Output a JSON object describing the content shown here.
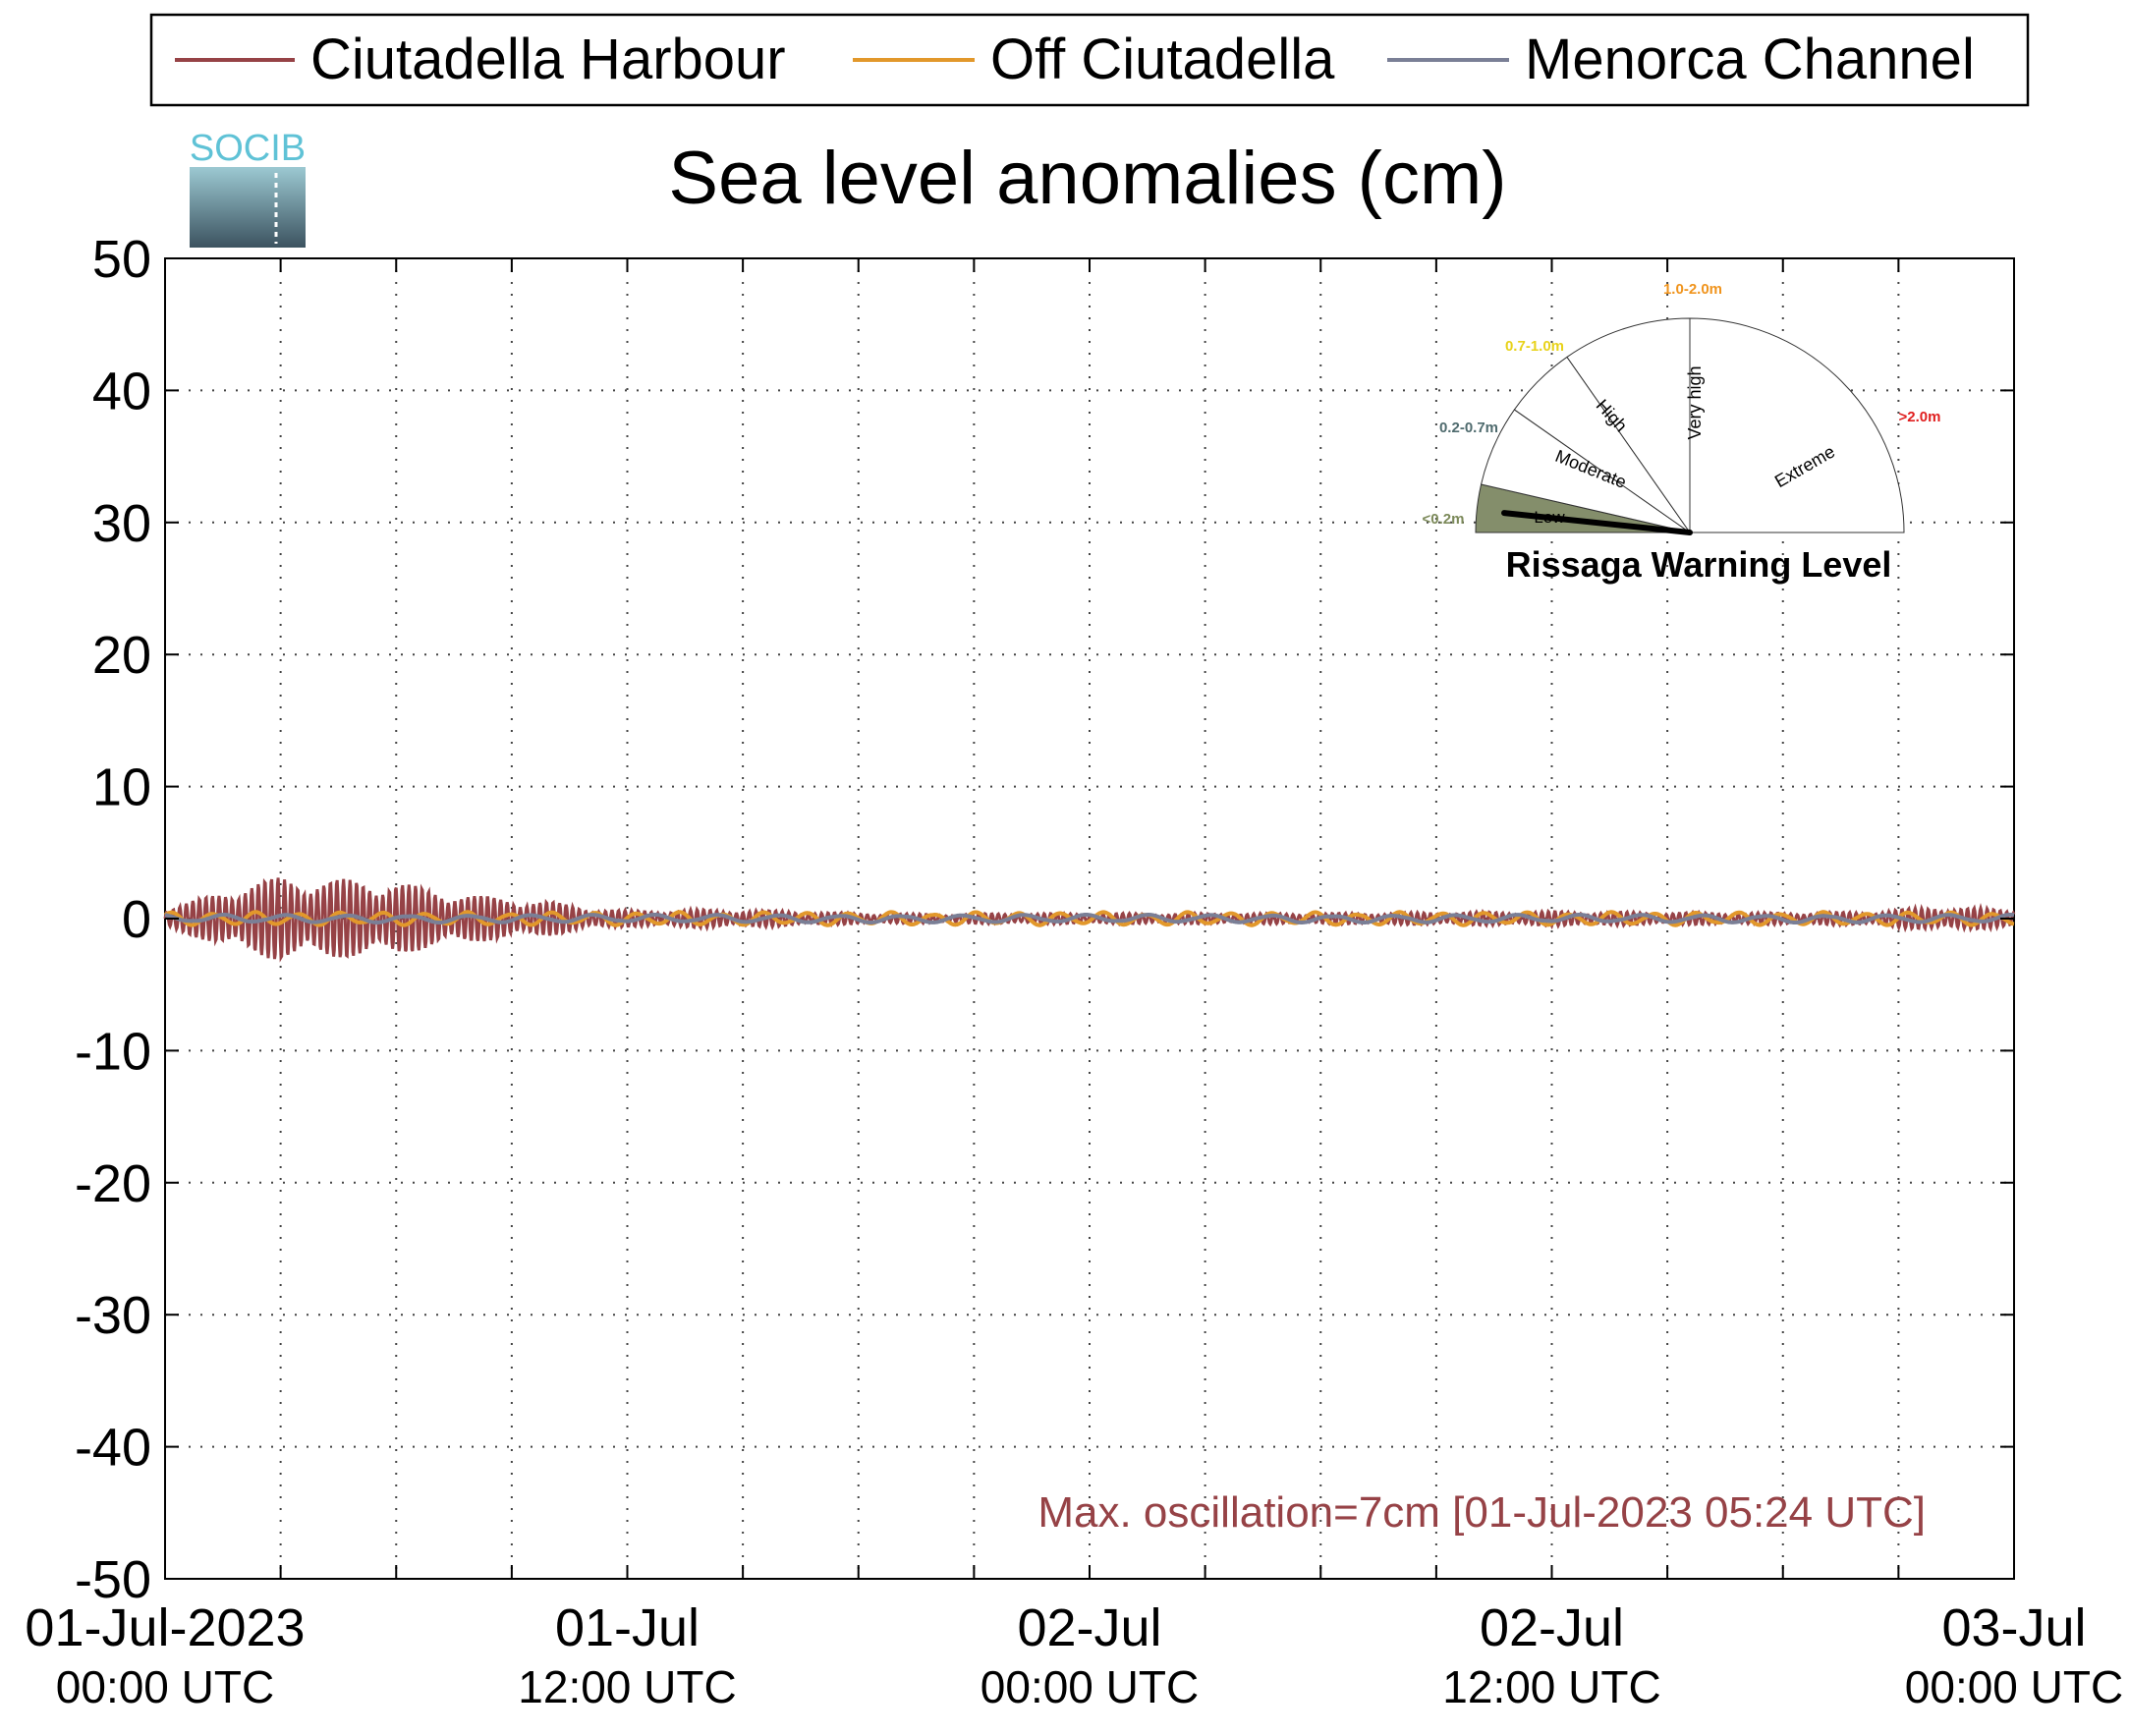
{
  "logo": {
    "text": "SOCIB"
  },
  "chart_data": {
    "type": "line",
    "title": "Sea level anomalies (cm)",
    "xlabel": "",
    "ylabel": "",
    "ylim": [
      -50,
      50
    ],
    "yticks": [
      50,
      40,
      30,
      20,
      10,
      0,
      -10,
      -20,
      -30,
      -40,
      -50
    ],
    "xlim_hours": [
      0,
      48
    ],
    "xtick_labels": [
      {
        "line1": "01-Jul-2023",
        "line2": "00:00 UTC"
      },
      {
        "line1": "01-Jul",
        "line2": "12:00 UTC"
      },
      {
        "line1": "02-Jul",
        "line2": "00:00 UTC"
      },
      {
        "line1": "02-Jul",
        "line2": "12:00 UTC"
      },
      {
        "line1": "03-Jul",
        "line2": "00:00 UTC"
      }
    ],
    "grid": true,
    "legend_position": "top",
    "series": [
      {
        "name": "Ciutadella Harbour",
        "color": "#964246",
        "envelope_x_hours": [
          0,
          1,
          2,
          3,
          4,
          5,
          6,
          7,
          8,
          9,
          10,
          11,
          12,
          14,
          16,
          18,
          20,
          22,
          24,
          26,
          28,
          30,
          32,
          34,
          36,
          38,
          40,
          42,
          44,
          45,
          46,
          47,
          48
        ],
        "envelope_amplitude_cm": [
          0.8,
          1.6,
          2.6,
          3.2,
          3.0,
          3.0,
          2.8,
          2.2,
          1.8,
          1.5,
          1.3,
          0.8,
          0.6,
          0.7,
          0.6,
          0.4,
          0.35,
          0.4,
          0.4,
          0.4,
          0.4,
          0.4,
          0.45,
          0.5,
          0.55,
          0.5,
          0.45,
          0.45,
          0.5,
          0.7,
          0.9,
          0.8,
          0.7
        ]
      },
      {
        "name": "Off Ciutadella",
        "color": "#E2982B",
        "envelope_amplitude_cm": 0.5
      },
      {
        "name": "Menorca Channel",
        "color": "#7A7F96",
        "envelope_amplitude_cm": 0.3
      }
    ],
    "annotation": "Max. oscillation=7cm [01-Jul-2023 05:24 UTC]",
    "annotation_color": "#964246"
  },
  "gauge": {
    "title": "Rissaga Warning Level",
    "needle_level": "Low",
    "segments": [
      {
        "label": "Low",
        "range": "<0.2m",
        "range_color": "#7C8A5A",
        "fill": "#848E6B"
      },
      {
        "label": "Moderate",
        "range": "0.2-0.7m",
        "range_color": "#4F6B6E",
        "fill": "#ffffff"
      },
      {
        "label": "High",
        "range": "0.7-1.0m",
        "range_color": "#E8D21A",
        "fill": "#ffffff"
      },
      {
        "label": "Very high",
        "range": "1.0-2.0m",
        "range_color": "#F0941D",
        "fill": "#ffffff"
      },
      {
        "label": "Extreme",
        "range": ">2.0m",
        "range_color": "#E01F1F",
        "fill": "#ffffff"
      }
    ]
  }
}
